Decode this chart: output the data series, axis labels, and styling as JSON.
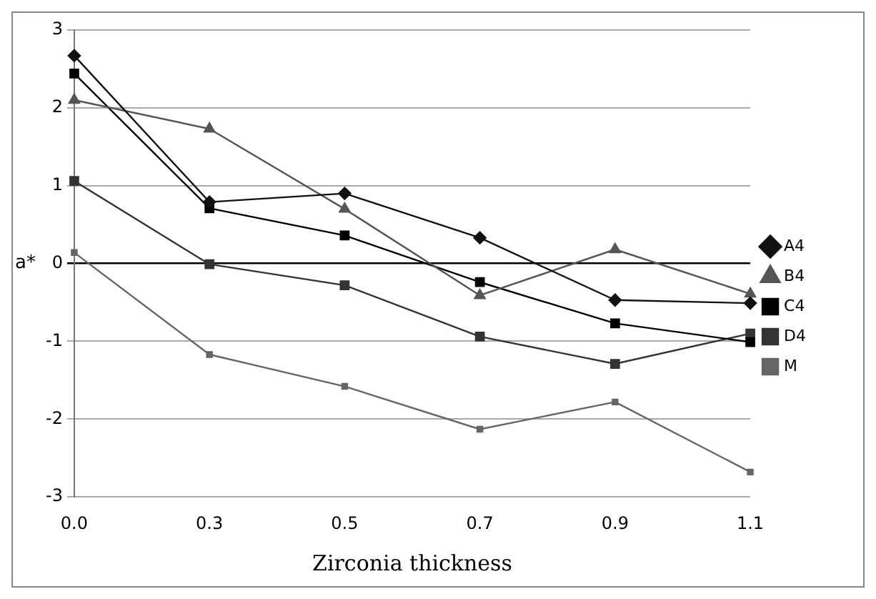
{
  "chart_data": {
    "type": "line",
    "xlabel": "Zirconia thickness",
    "ylabel": "a*",
    "categories": [
      "0.0",
      "0.3",
      "0.5",
      "0.7",
      "0.9",
      "1.1"
    ],
    "series": [
      {
        "name": "A4",
        "color": "#111111",
        "marker": "diamond",
        "values": [
          2.67,
          0.79,
          0.9,
          0.33,
          -0.47,
          -0.51
        ]
      },
      {
        "name": "B4",
        "color": "#555555",
        "marker": "triangle",
        "values": [
          2.1,
          1.73,
          0.7,
          -0.41,
          0.18,
          -0.39
        ]
      },
      {
        "name": "C4",
        "color": "#000000",
        "marker": "square",
        "values": [
          2.44,
          0.71,
          0.36,
          -0.24,
          -0.77,
          -1.01
        ]
      },
      {
        "name": "D4",
        "color": "#333333",
        "marker": "square",
        "values": [
          1.06,
          -0.01,
          -0.28,
          -0.94,
          -1.29,
          -0.9
        ]
      },
      {
        "name": "M",
        "color": "#666666",
        "marker": "square",
        "values": [
          0.14,
          -1.17,
          -1.58,
          -2.13,
          -1.78,
          -2.68
        ]
      }
    ],
    "ylim": [
      -3,
      3
    ],
    "yticks": [
      -3,
      -2,
      -1,
      0,
      1,
      2,
      3
    ],
    "grid": "y",
    "legend": "right",
    "line_style": "solid"
  }
}
